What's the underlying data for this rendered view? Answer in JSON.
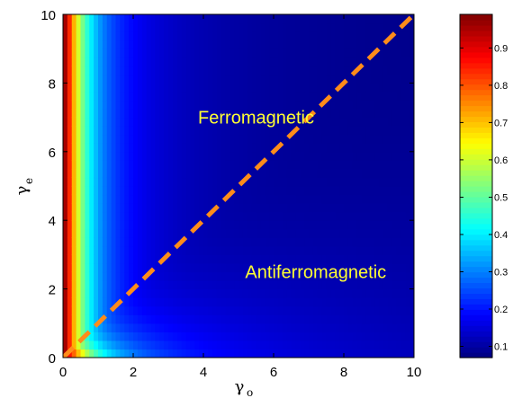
{
  "chart_data": {
    "type": "heatmap",
    "title": "",
    "xlabel": "γ",
    "xlabel_sub": "o",
    "ylabel": "γ",
    "ylabel_sub": "e",
    "xlim": [
      0,
      10
    ],
    "ylim": [
      0,
      10
    ],
    "xticks": [
      "0",
      "2",
      "4",
      "6",
      "8",
      "10"
    ],
    "yticks": [
      "0",
      "2",
      "4",
      "6",
      "8",
      "10"
    ],
    "colormap": "jet",
    "colorbar": {
      "range": [
        0.07,
        0.99
      ],
      "ticks": [
        "0.1",
        "0.2",
        "0.3",
        "0.4",
        "0.5",
        "0.6",
        "0.7",
        "0.8",
        "0.9"
      ],
      "tick_values": [
        0.1,
        0.2,
        0.3,
        0.4,
        0.5,
        0.6,
        0.7,
        0.8,
        0.9
      ]
    },
    "boundary_line": {
      "x": [
        0,
        10
      ],
      "y": [
        0,
        10
      ],
      "color": "#ff8c1a",
      "style": "dashed"
    },
    "annotations": [
      {
        "text": "Ferromagnetic",
        "x": 5.5,
        "y": 7.0,
        "color": "#ffff33"
      },
      {
        "text": "Antiferromagnetic",
        "x": 7.2,
        "y": 2.5,
        "color": "#ffff33"
      }
    ]
  }
}
